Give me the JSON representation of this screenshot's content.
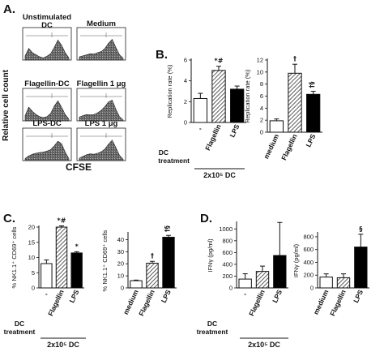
{
  "panels": {
    "A": "A.",
    "B": "B.",
    "C": "C.",
    "D": "D."
  },
  "flow": {
    "y_label": "Relative cell count",
    "x_label": "CFSE",
    "histograms": [
      {
        "label": "Unstimulated DC",
        "lines": [
          "Unstimulated",
          "DC"
        ]
      },
      {
        "label": "Medium",
        "lines": [
          "Medium"
        ]
      },
      {
        "label": "Flagellin-DC",
        "lines": [
          "Flagellin-DC"
        ]
      },
      {
        "label": "Flagellin 1 μg",
        "lines": [
          "Flagellin 1 μg"
        ]
      },
      {
        "label": "LPS-DC",
        "lines": [
          "LPS-DC"
        ]
      },
      {
        "label": "LPS 1 μg",
        "lines": [
          "LPS 1 μg"
        ]
      }
    ]
  },
  "group_labels": {
    "dc_treatment_line1": "DC",
    "dc_treatment_line2": "treatment",
    "dc_dose": "2x10⁵ DC"
  },
  "colors": {
    "black": "#000000",
    "white": "#ffffff",
    "hatch": "#555555"
  },
  "chart_data": [
    {
      "id": "B_left",
      "type": "bar",
      "ylabel": "Replication rate (%)",
      "categories": [
        "-",
        "Flagellin",
        "LPS"
      ],
      "fills": [
        "white",
        "hatch",
        "black"
      ],
      "values": [
        2.3,
        5.0,
        3.2
      ],
      "errors": [
        0.5,
        0.4,
        0.3
      ],
      "ylim": [
        0,
        6
      ],
      "yticks": [
        0,
        2,
        4,
        6
      ],
      "annotations": [
        {
          "index": 1,
          "text": "*#"
        }
      ]
    },
    {
      "id": "B_right",
      "type": "bar",
      "ylabel": "Replication rate (%)",
      "categories": [
        "medium",
        "Flagellin",
        "LPS"
      ],
      "fills": [
        "white",
        "hatch",
        "black"
      ],
      "values": [
        1.9,
        9.8,
        6.3
      ],
      "errors": [
        0.3,
        1.5,
        0.5
      ],
      "ylim": [
        0,
        12
      ],
      "yticks": [
        0,
        2,
        4,
        6,
        8,
        10,
        12
      ],
      "annotations": [
        {
          "index": 1,
          "text": "†"
        },
        {
          "index": 2,
          "text": "†§"
        }
      ]
    },
    {
      "id": "C_left",
      "type": "bar",
      "ylabel": "% NK1.1⁺ CD69⁺ cells",
      "categories": [
        "-",
        "Flagellin",
        "LPS"
      ],
      "fills": [
        "white",
        "hatch",
        "black"
      ],
      "values": [
        8,
        20,
        11.5
      ],
      "errors": [
        1.2,
        0.5,
        0.4
      ],
      "ylim": [
        0,
        20
      ],
      "yticks": [
        0,
        5,
        10,
        15,
        20
      ],
      "annotations": [
        {
          "index": 1,
          "text": "*#"
        },
        {
          "index": 2,
          "text": "*"
        }
      ]
    },
    {
      "id": "C_right",
      "type": "bar",
      "ylabel": "% NK1.1⁺ CD69⁺ cells",
      "categories": [
        "medium",
        "Flagellin",
        "LPS"
      ],
      "fills": [
        "white",
        "hatch",
        "black"
      ],
      "values": [
        6,
        20.5,
        42
      ],
      "errors": [
        0.5,
        1.5,
        1.5
      ],
      "ylim": [
        0,
        45
      ],
      "yticks": [
        0,
        10,
        20,
        30,
        40
      ],
      "annotations": [
        {
          "index": 1,
          "text": "†"
        },
        {
          "index": 2,
          "text": "†§"
        }
      ]
    },
    {
      "id": "D_left",
      "type": "bar",
      "ylabel": "IFNγ (pg/ml)",
      "categories": [
        "-",
        "Flagellin",
        "LPS"
      ],
      "fills": [
        "white",
        "hatch",
        "black"
      ],
      "values": [
        150,
        280,
        550
      ],
      "errors": [
        90,
        90,
        560
      ],
      "ylim": [
        0,
        1100
      ],
      "yticks": [
        0,
        200,
        400,
        600,
        800,
        1000
      ],
      "annotations": []
    },
    {
      "id": "D_right",
      "type": "bar",
      "ylabel": "IFNγ (pg/ml)",
      "categories": [
        "medium",
        "Flagellin",
        "LPS"
      ],
      "fills": [
        "white",
        "hatch",
        "black"
      ],
      "values": [
        170,
        160,
        640
      ],
      "errors": [
        50,
        60,
        200
      ],
      "ylim": [
        0,
        850
      ],
      "yticks": [
        0,
        200,
        400,
        600,
        800
      ],
      "annotations": [
        {
          "index": 2,
          "text": "§"
        }
      ]
    }
  ]
}
